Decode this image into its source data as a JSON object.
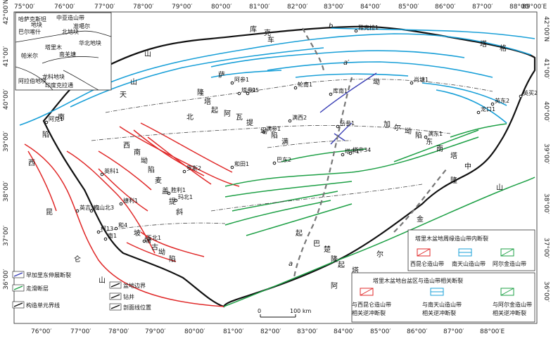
{
  "axes": {
    "top_ticks": [
      "75°00′",
      "76°00′",
      "77°00′",
      "78°00′",
      "79°00′",
      "80°00′",
      "81°00′",
      "82°00′",
      "83°00′",
      "84°00′",
      "85°00′",
      "86°00′",
      "87°00′",
      "88°00′",
      "89°00′E"
    ],
    "bottom_ticks": [
      "76°00′",
      "77°00′",
      "78°00′",
      "79°00′",
      "80°00′",
      "81°00′",
      "82°00′",
      "83°00′",
      "84°00′",
      "85°00′",
      "86°00′",
      "87°00′",
      "88°00′E"
    ],
    "left_ticks": [
      "42°00′N",
      "41°00′",
      "40°00′",
      "39°00′",
      "38°00′",
      "37°00′",
      "36°00′"
    ],
    "right_ticks": [
      "42°00′N",
      "41°00′",
      "40°00′",
      "39°00′",
      "38°00′",
      "37°00′",
      "36°00′"
    ]
  },
  "inset": {
    "labels": [
      "哈萨克斯坦",
      "地块",
      "中亚造山带",
      "巴尔喀什",
      "北地块",
      "帕米尔",
      "塔里木",
      "华北地块",
      "准噶尔",
      "南羌塘",
      "龙科地块",
      "阿拉伯地块",
      "印度克拉通"
    ]
  },
  "regions": {
    "tianshan": [
      "天",
      "山",
      "南",
      "库",
      "车",
      "坳",
      "陷",
      "萨",
      "克",
      "塔",
      "格",
      "山"
    ],
    "central": [
      "塔",
      "北",
      "隆",
      "起",
      "阿",
      "瓦",
      "提",
      "坳",
      "陷",
      "满",
      "加",
      "尔",
      "坳",
      "陷",
      "东",
      "南",
      "塔",
      "中",
      "隆",
      "起",
      "巴",
      "楚",
      "隆",
      "起",
      "塔",
      "西",
      "南",
      "坳",
      "陷",
      "麦",
      "盖",
      "提",
      "斜",
      "坡",
      "塘",
      "古",
      "坳",
      "陷"
    ],
    "kunlun": [
      "西",
      "昆",
      "仑",
      "山",
      "阿",
      "尔",
      "金",
      "山"
    ],
    "wells": [
      "阿克1",
      "英买2",
      "雅克拉1",
      "塔中1",
      "塔参1",
      "满参1",
      "和田1",
      "玛北1",
      "巴东2",
      "英吉沙1",
      "肖塘1",
      "库南1",
      "轮南1",
      "阿参1",
      "沙5",
      "英东2",
      "龙口1",
      "满东1",
      "塔中34",
      "满西2",
      "岳参1",
      "玉北1",
      "南1",
      "和4",
      "柯13",
      "皮山北3",
      "捷利1",
      "英科1",
      "胜利1",
      "罗斯2"
    ]
  },
  "legend_box_right": {
    "title": "塔里木盆地周缘造山带内断裂",
    "items": [
      "西昆仑造山带",
      "南天山造山带",
      "阿尔金造山带"
    ]
  },
  "legend_box_right2": {
    "title": "塔里木盆地台盆区与造山带相关断裂",
    "items": [
      "与西昆仑造山带相关逆冲断裂",
      "与南天山造山带相关逆冲断裂",
      "与阿尔金造山带相关逆冲断裂"
    ]
  },
  "legend_left": {
    "items": [
      "早加里东伸展断裂",
      "盆地边界",
      "走滑断层",
      "钻井",
      "构造单元界线",
      "剖面线位置"
    ]
  },
  "scale": {
    "labels": [
      "0",
      "100 km"
    ]
  },
  "profile_letters": [
    "a",
    "a′",
    "b"
  ],
  "colors": {
    "kunlun": "#e02828",
    "tianshan": "#1aa0d8",
    "altun": "#1ea046",
    "ext": "#3a3fb5",
    "boundary": "#111111"
  }
}
